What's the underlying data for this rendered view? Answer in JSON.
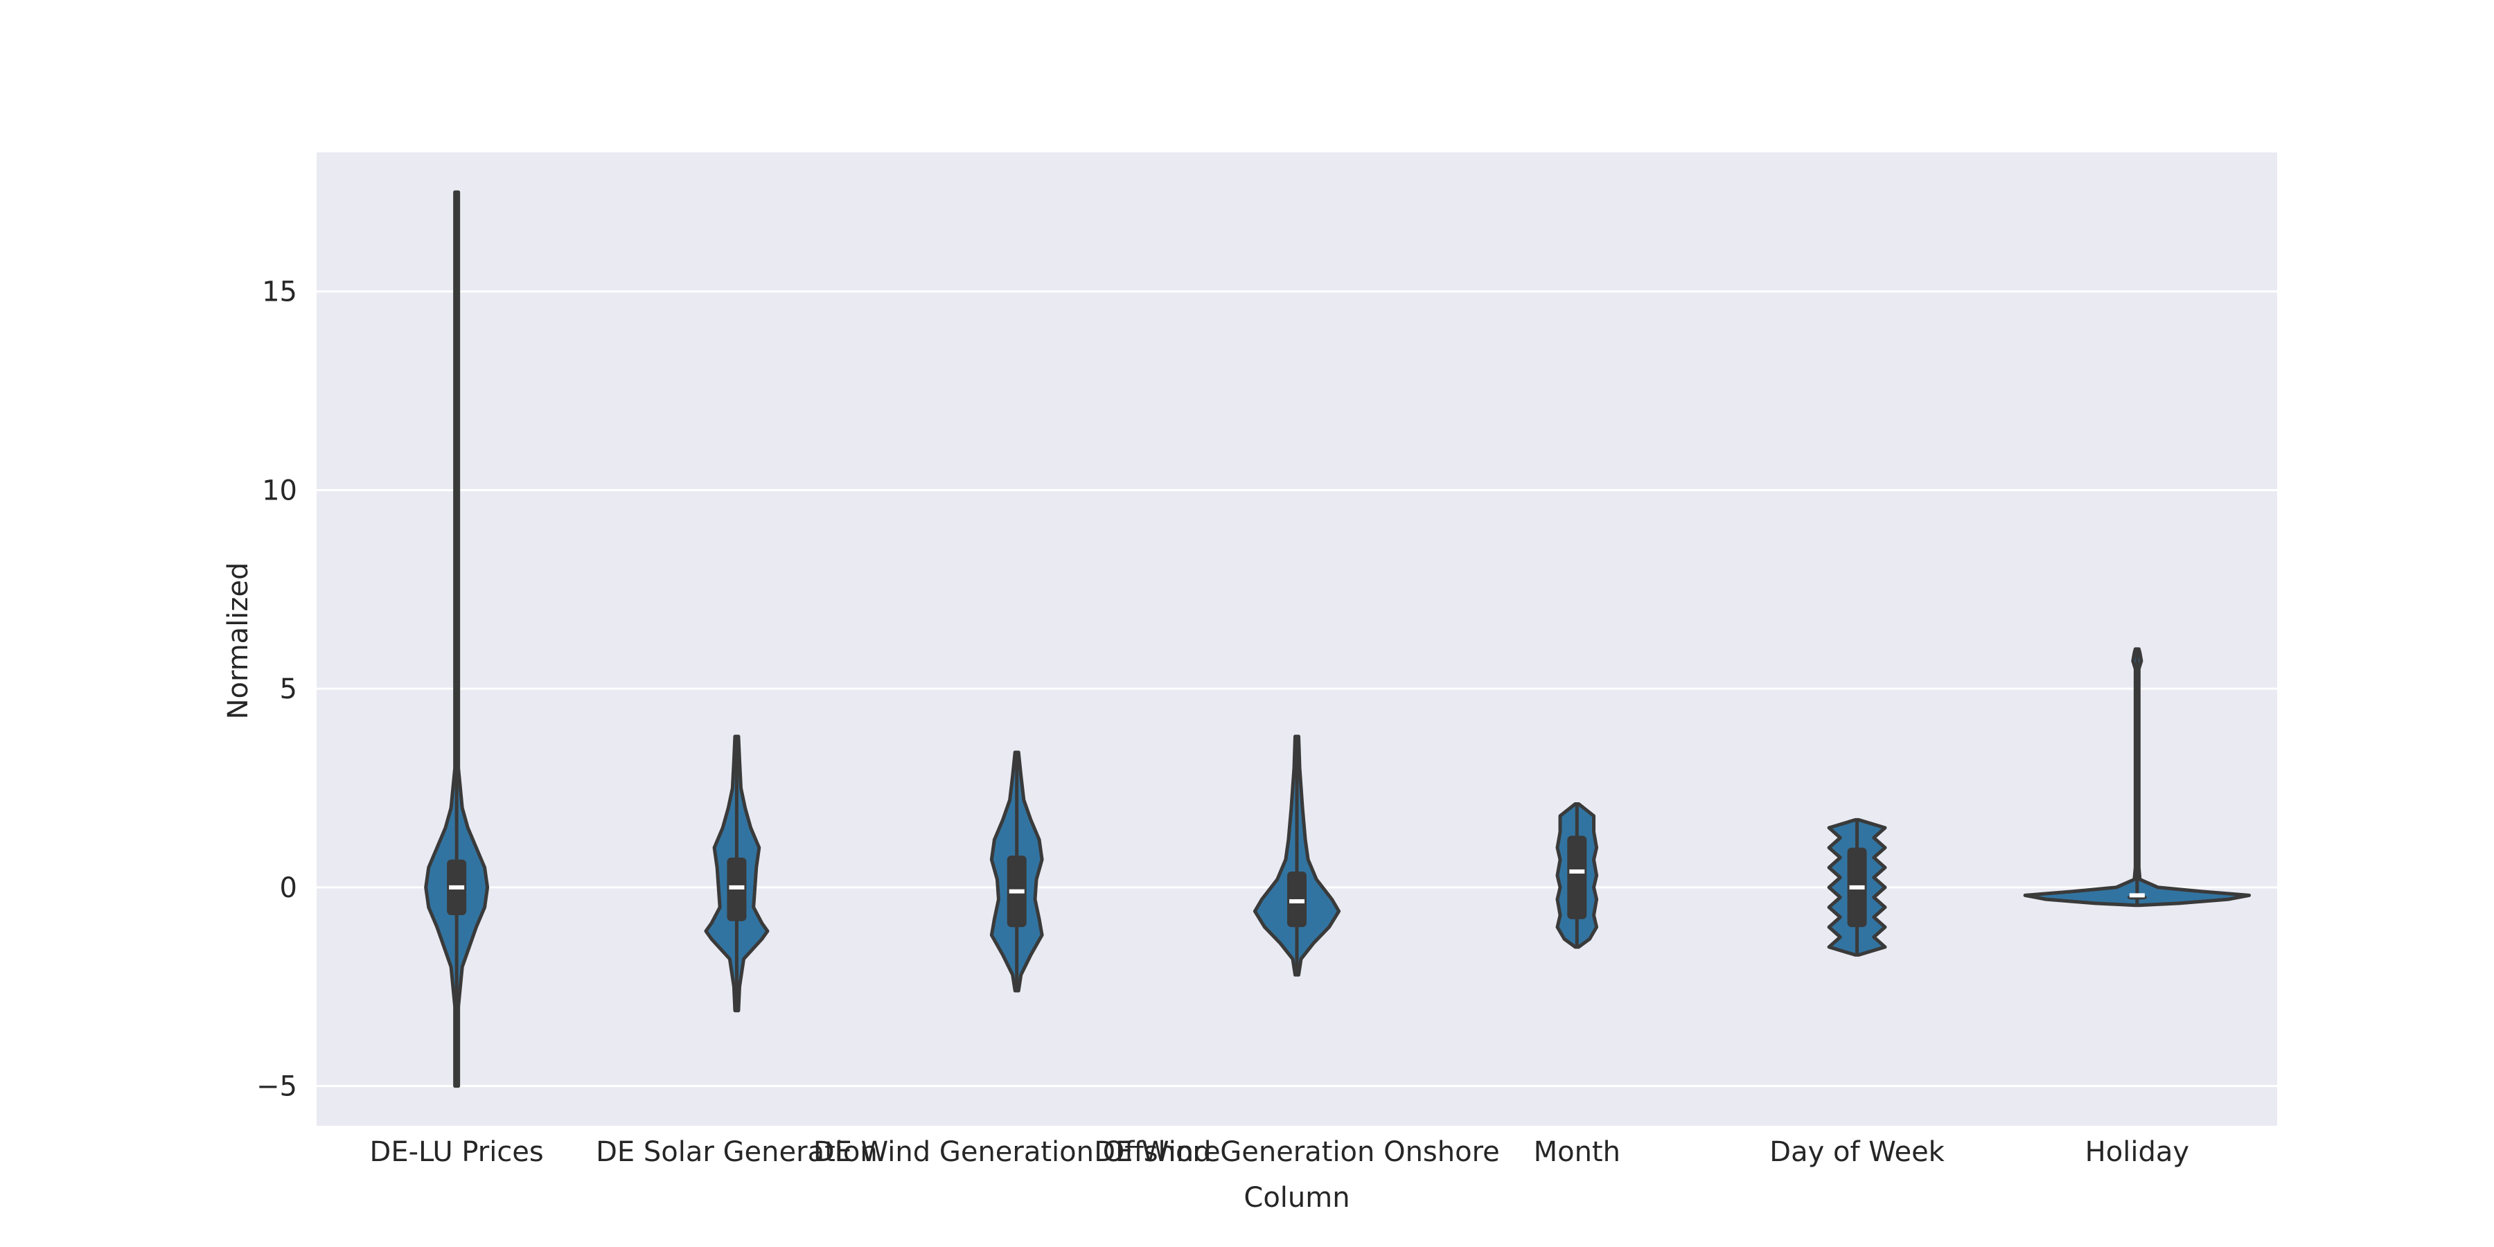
{
  "chart_data": {
    "type": "violin",
    "xlabel": "Column",
    "ylabel": "Normalized",
    "ylim": [
      -6.0,
      18.5
    ],
    "yticks": [
      {
        "value": 15,
        "label": "15"
      },
      {
        "value": 10,
        "label": "10"
      },
      {
        "value": 5,
        "label": "5"
      },
      {
        "value": 0,
        "label": "0"
      },
      {
        "value": -5,
        "label": "−5"
      }
    ],
    "grid": true,
    "background": "#eaeaf2",
    "grid_color": "#ffffff",
    "violin_fill": "#3274a1",
    "violin_edge": "#3a3a3a",
    "categories": [
      "DE-LU Prices",
      "DE Solar Generation",
      "DE Wind Generation Offshore",
      "DE Wind Generation Onshore",
      "Month",
      "Day of Week",
      "Holiday"
    ],
    "violins": [
      {
        "category": "DE-LU Prices",
        "min": -5.0,
        "max": 17.5,
        "q1": -0.7,
        "median": 0.0,
        "q3": 0.7,
        "profile": [
          [
            -5.0,
            0.0
          ],
          [
            -3.0,
            0.01
          ],
          [
            -2.0,
            0.04
          ],
          [
            -1.0,
            0.14
          ],
          [
            -0.5,
            0.2
          ],
          [
            0.0,
            0.22
          ],
          [
            0.5,
            0.2
          ],
          [
            1.0,
            0.14
          ],
          [
            1.5,
            0.08
          ],
          [
            2.0,
            0.04
          ],
          [
            3.0,
            0.01
          ],
          [
            5.0,
            0.004
          ],
          [
            17.5,
            0.0
          ]
        ]
      },
      {
        "category": "DE Solar Generation",
        "min": -3.1,
        "max": 3.8,
        "q1": -0.85,
        "median": 0.0,
        "q3": 0.75,
        "profile": [
          [
            -3.1,
            0.0
          ],
          [
            -2.5,
            0.02
          ],
          [
            -1.8,
            0.05
          ],
          [
            -1.3,
            0.18
          ],
          [
            -1.1,
            0.22
          ],
          [
            -0.9,
            0.18
          ],
          [
            -0.5,
            0.12
          ],
          [
            0.0,
            0.13
          ],
          [
            0.5,
            0.14
          ],
          [
            1.0,
            0.16
          ],
          [
            1.5,
            0.1
          ],
          [
            2.0,
            0.06
          ],
          [
            2.5,
            0.03
          ],
          [
            3.2,
            0.02
          ],
          [
            3.8,
            0.0
          ]
        ]
      },
      {
        "category": "DE Wind Generation Offshore",
        "min": -2.6,
        "max": 3.4,
        "q1": -1.0,
        "median": -0.1,
        "q3": 0.8,
        "profile": [
          [
            -2.6,
            0.0
          ],
          [
            -2.2,
            0.03
          ],
          [
            -1.7,
            0.1
          ],
          [
            -1.2,
            0.18
          ],
          [
            -0.8,
            0.16
          ],
          [
            -0.3,
            0.13
          ],
          [
            0.2,
            0.14
          ],
          [
            0.7,
            0.18
          ],
          [
            1.2,
            0.16
          ],
          [
            1.7,
            0.1
          ],
          [
            2.2,
            0.05
          ],
          [
            2.8,
            0.03
          ],
          [
            3.4,
            0.0
          ]
        ]
      },
      {
        "category": "DE Wind Generation Onshore",
        "min": -2.2,
        "max": 3.8,
        "q1": -1.0,
        "median": -0.35,
        "q3": 0.4,
        "profile": [
          [
            -2.2,
            0.0
          ],
          [
            -1.8,
            0.03
          ],
          [
            -1.4,
            0.12
          ],
          [
            -1.0,
            0.23
          ],
          [
            -0.6,
            0.3
          ],
          [
            -0.3,
            0.25
          ],
          [
            0.2,
            0.14
          ],
          [
            0.7,
            0.08
          ],
          [
            1.2,
            0.06
          ],
          [
            2.0,
            0.04
          ],
          [
            3.0,
            0.02
          ],
          [
            3.8,
            0.0
          ]
        ]
      },
      {
        "category": "Month",
        "min": -1.5,
        "max": 2.1,
        "q1": -0.8,
        "median": 0.4,
        "q3": 1.3,
        "profile": [
          [
            -1.5,
            0.0
          ],
          [
            -1.3,
            0.09
          ],
          [
            -1.0,
            0.14
          ],
          [
            -0.7,
            0.12
          ],
          [
            -0.3,
            0.14
          ],
          [
            0.0,
            0.12
          ],
          [
            0.3,
            0.14
          ],
          [
            0.7,
            0.12
          ],
          [
            1.0,
            0.14
          ],
          [
            1.4,
            0.12
          ],
          [
            1.8,
            0.12
          ],
          [
            2.1,
            0.0
          ]
        ]
      },
      {
        "category": "Day of Week",
        "min": -1.7,
        "max": 1.7,
        "q1": -1.0,
        "median": 0.0,
        "q3": 1.0,
        "profile": [
          [
            -1.7,
            0.0
          ],
          [
            -1.5,
            0.2
          ],
          [
            -1.25,
            0.12
          ],
          [
            -1.0,
            0.2
          ],
          [
            -0.75,
            0.12
          ],
          [
            -0.5,
            0.2
          ],
          [
            -0.25,
            0.12
          ],
          [
            0.0,
            0.2
          ],
          [
            0.25,
            0.12
          ],
          [
            0.5,
            0.2
          ],
          [
            0.75,
            0.12
          ],
          [
            1.0,
            0.2
          ],
          [
            1.25,
            0.12
          ],
          [
            1.5,
            0.2
          ],
          [
            1.7,
            0.0
          ]
        ]
      },
      {
        "category": "Holiday",
        "min": -0.45,
        "max": 6.0,
        "q1": -0.2,
        "median": -0.2,
        "q3": -0.2,
        "profile": [
          [
            -0.45,
            0.0
          ],
          [
            -0.4,
            0.3
          ],
          [
            -0.3,
            0.65
          ],
          [
            -0.2,
            0.8
          ],
          [
            -0.1,
            0.45
          ],
          [
            0.0,
            0.15
          ],
          [
            0.2,
            0.02
          ],
          [
            0.5,
            0.005
          ],
          [
            5.5,
            0.005
          ],
          [
            5.7,
            0.03
          ],
          [
            5.9,
            0.02
          ],
          [
            6.0,
            0.0
          ]
        ]
      }
    ]
  }
}
